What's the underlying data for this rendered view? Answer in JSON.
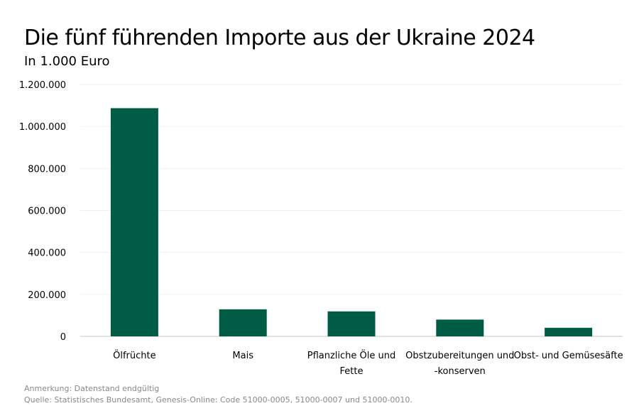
{
  "chart_data": {
    "type": "bar",
    "title": "Die fünf führenden Importe aus der Ukraine 2024",
    "subtitle": "In 1.000 Euro",
    "categories": [
      [
        "Ölfrüchte"
      ],
      [
        "Mais"
      ],
      [
        "Pflanzliche Öle und",
        "Fette"
      ],
      [
        "Obstzubereitungen und",
        "-konserven"
      ],
      [
        "Obst- und Gemüsesäfte"
      ]
    ],
    "values": [
      1087000,
      129000,
      119000,
      80000,
      41000
    ],
    "ylim": [
      0,
      1200000
    ],
    "yticks": [
      0,
      200000,
      400000,
      600000,
      800000,
      1000000,
      1200000
    ],
    "ytick_labels": [
      "0",
      "200.000",
      "400.000",
      "600.000",
      "800.000",
      "1.000.000",
      "1.200.000"
    ],
    "grid": true,
    "bar_color": "#005c45"
  },
  "notes": {
    "remark": "Anmerkung: Datenstand endgültig",
    "source": "Quelle: Statistisches Bundesamt, Genesis-Online: Code 51000-0005, 51000-0007 und 51000-0010."
  }
}
